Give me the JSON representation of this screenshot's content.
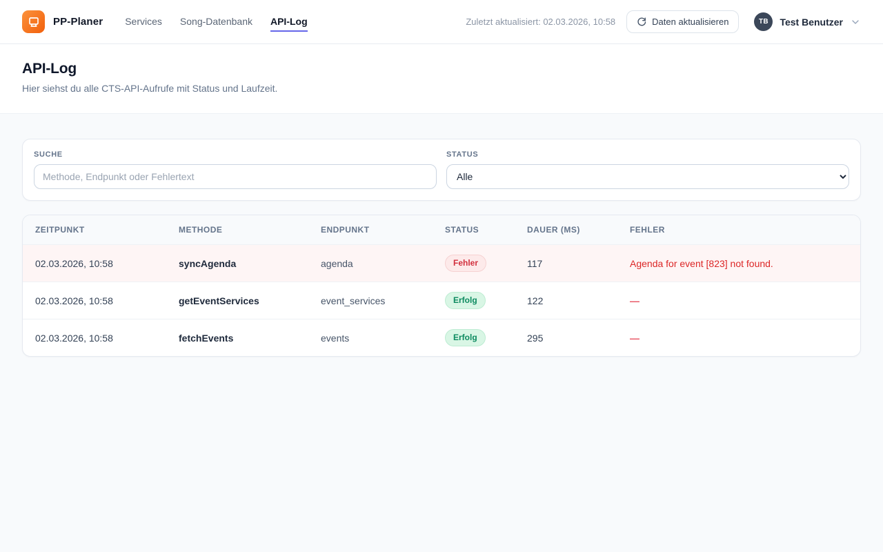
{
  "brand": {
    "name": "PP-Planer"
  },
  "nav": {
    "items": [
      {
        "label": "Services",
        "active": false
      },
      {
        "label": "Song-Datenbank",
        "active": false
      },
      {
        "label": "API-Log",
        "active": true
      }
    ]
  },
  "header_right": {
    "last_updated": "Zuletzt aktualisiert: 02.03.2026, 10:58",
    "refresh_label": "Daten aktualisieren",
    "user": {
      "initials": "TB",
      "name": "Test Benutzer"
    }
  },
  "page": {
    "title": "API-Log",
    "subtitle": "Hier siehst du alle CTS-API-Aufrufe mit Status und Laufzeit."
  },
  "filters": {
    "search": {
      "label": "Suche",
      "placeholder": "Methode, Endpunkt oder Fehlertext",
      "value": ""
    },
    "status": {
      "label": "Status",
      "selected": "Alle"
    }
  },
  "table": {
    "columns": [
      "Zeitpunkt",
      "Methode",
      "Endpunkt",
      "Status",
      "Dauer (ms)",
      "Fehler"
    ],
    "rows": [
      {
        "zeitpunkt": "02.03.2026, 10:58",
        "methode": "syncAgenda",
        "endpunkt": "agenda",
        "status": "Fehler",
        "status_type": "error",
        "dauer": "117",
        "fehler": "Agenda for event [823] not found."
      },
      {
        "zeitpunkt": "02.03.2026, 10:58",
        "methode": "getEventServices",
        "endpunkt": "event_services",
        "status": "Erfolg",
        "status_type": "success",
        "dauer": "122",
        "fehler": "—"
      },
      {
        "zeitpunkt": "02.03.2026, 10:58",
        "methode": "fetchEvents",
        "endpunkt": "events",
        "status": "Erfolg",
        "status_type": "success",
        "dauer": "295",
        "fehler": "—"
      }
    ]
  },
  "colors": {
    "accent_orange": "#f97316",
    "nav_active_underline": "#6466e9",
    "error_text": "#dc2626",
    "error_badge_bg": "#fdeaea",
    "success_text": "#0c8a5f",
    "success_badge_bg": "#d9f6e5",
    "error_row_bg": "#fef5f5"
  }
}
